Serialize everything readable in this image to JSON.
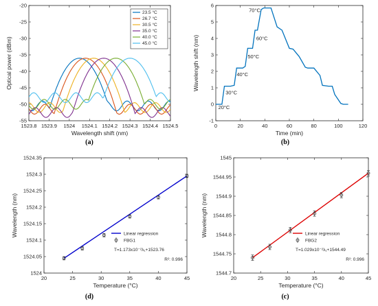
{
  "chart_data": [
    {
      "id": "a",
      "panel_label": "(a)",
      "type": "line",
      "xlabel": "Wavelength shift (nm)",
      "ylabel": "Optical power (dBm)",
      "xlim": [
        1523.8,
        1524.5
      ],
      "ylim": [
        -55,
        -20
      ],
      "xticks": [
        "1523.8",
        "1523.9",
        "1524",
        "1524.1",
        "1524.2",
        "1524.3",
        "1524.4",
        "1524.5"
      ],
      "yticks": [
        "-55",
        "-50",
        "-45",
        "-40",
        "-35",
        "-30",
        "-25",
        "-20"
      ],
      "legend_position": "top-right",
      "series": [
        {
          "name": "23.5 °C",
          "color": "#0072BD",
          "peak": 1524.05,
          "sidelobe_a": -50.5
        },
        {
          "name": "26.7 °C",
          "color": "#D95319",
          "peak": 1524.08,
          "sidelobe_a": -51.5
        },
        {
          "name": "30.5 °C",
          "color": "#EDB120",
          "peak": 1524.12,
          "sidelobe_a": -51.0
        },
        {
          "name": "35.0 °C",
          "color": "#7E2F8E",
          "peak": 1524.17,
          "sidelobe_a": -52.5
        },
        {
          "name": "40.0 °C",
          "color": "#77AC30",
          "peak": 1524.23,
          "sidelobe_a": -50.0
        },
        {
          "name": "45.0 °C",
          "color": "#4DBEEE",
          "peak": 1524.3,
          "sidelobe_a": -48.0
        }
      ]
    },
    {
      "id": "b",
      "panel_label": "(b)",
      "type": "line",
      "xlabel": "Time (min)",
      "ylabel": "Wavelength shift (nm)",
      "xlim": [
        0,
        120
      ],
      "ylim": [
        -1,
        6
      ],
      "xticks": [
        "0",
        "20",
        "40",
        "60",
        "80",
        "100",
        "120"
      ],
      "yticks": [
        "-1",
        "0",
        "1",
        "2",
        "3",
        "4",
        "5",
        "6"
      ],
      "color": "#0072BD",
      "x": [
        0,
        5,
        7,
        12,
        15,
        17,
        22,
        24,
        26,
        30,
        32,
        34,
        37,
        39,
        45,
        50,
        54,
        60,
        63,
        68,
        73,
        75,
        80,
        85,
        87,
        92,
        95,
        97,
        102,
        104,
        108
      ],
      "y": [
        0,
        0,
        1.1,
        1.1,
        1.15,
        2.2,
        2.2,
        2.3,
        3.4,
        3.4,
        4.5,
        4.5,
        5.75,
        5.85,
        5.85,
        4.7,
        4.5,
        3.4,
        3.35,
        2.9,
        2.25,
        2.2,
        2.2,
        1.75,
        1.15,
        1.1,
        1.1,
        0.6,
        0.05,
        0,
        0
      ],
      "annotations": [
        {
          "text": "20°C",
          "x": 2,
          "y": -0.3
        },
        {
          "text": "30°C",
          "x": 8,
          "y": 0.6
        },
        {
          "text": "40°C",
          "x": 17,
          "y": 1.7
        },
        {
          "text": "50°C",
          "x": 26,
          "y": 2.8
        },
        {
          "text": "60°C",
          "x": 33,
          "y": 3.9
        },
        {
          "text": "70°C",
          "x": 27,
          "y": 5.6
        }
      ]
    },
    {
      "id": "d",
      "panel_label": "(d)",
      "type": "scatter",
      "xlabel": "Temperature (°C)",
      "ylabel": "Wavelength (nm)",
      "xlim": [
        20,
        45
      ],
      "ylim": [
        1524,
        1524.35
      ],
      "xticks": [
        "20",
        "25",
        "30",
        "35",
        "40",
        "45"
      ],
      "yticks": [
        "1524",
        "1524.05",
        "1524.1",
        "1524.15",
        "1524.2",
        "1524.25",
        "1524.3",
        "1524.35"
      ],
      "line_color": "#0000CC",
      "points": [
        {
          "x": 23.5,
          "y": 1524.045
        },
        {
          "x": 26.7,
          "y": 1524.075
        },
        {
          "x": 30.5,
          "y": 1524.115
        },
        {
          "x": 35.0,
          "y": 1524.172
        },
        {
          "x": 40.0,
          "y": 1524.23
        },
        {
          "x": 45.0,
          "y": 1524.295
        }
      ],
      "error": 0.005,
      "fit": {
        "slope": 0.01173,
        "intercept": 1523.76
      },
      "legend": {
        "line": "Linear regression",
        "marker": "FBG1"
      },
      "equation": "T=1.173x10⁻²λ₁+1523.76",
      "r2": "R²: 0.996"
    },
    {
      "id": "c",
      "panel_label": "(c)",
      "type": "scatter",
      "xlabel": "Temperature (°C)",
      "ylabel": "Wavelength (nm)",
      "xlim": [
        20,
        45
      ],
      "ylim": [
        1544.7,
        1545
      ],
      "xticks": [
        "20",
        "25",
        "30",
        "35",
        "40",
        "45"
      ],
      "yticks": [
        "1544.7",
        "1544.75",
        "1544.8",
        "1544.85",
        "1544.9",
        "1544.95",
        "1545"
      ],
      "line_color": "#DD0000",
      "points": [
        {
          "x": 23.5,
          "y": 1544.74
        },
        {
          "x": 26.7,
          "y": 1544.768
        },
        {
          "x": 30.5,
          "y": 1544.812
        },
        {
          "x": 35.0,
          "y": 1544.855
        },
        {
          "x": 40.0,
          "y": 1544.903
        },
        {
          "x": 45.0,
          "y": 1544.96
        }
      ],
      "error": 0.007,
      "fit": {
        "slope": 0.01029,
        "intercept": 1544.49
      },
      "legend": {
        "line": "Linear regression",
        "marker": "FBG2"
      },
      "equation": "T=1.029x10⁻²λ₁+1544.49",
      "r2": "R²: 0.996"
    }
  ]
}
